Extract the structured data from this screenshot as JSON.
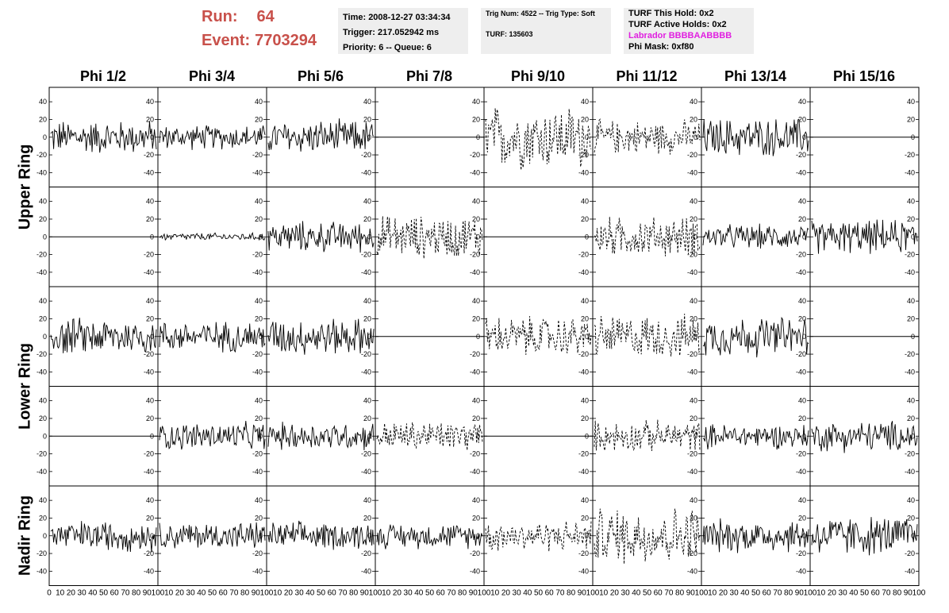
{
  "header": {
    "run_label": "Run:",
    "run_value": "64",
    "event_label": "Event:",
    "event_value": "7703294"
  },
  "info_box_1": {
    "time": "Time: 2008-12-27 03:34:34",
    "trigger": "Trigger: 217.052942 ms",
    "priority": "Priority: 6 -- Queue: 6"
  },
  "info_box_2": {
    "trig": "Trig Num: 4522 -- Trig Type: Soft",
    "turf": "TURF: 135603"
  },
  "info_box_3": {
    "hold": "TURF This Hold: 0x2",
    "active": "TURF Active Holds: 0x2",
    "labrador": "Labrador BBBBAABBBB",
    "phimask": "Phi Mask: 0xf80"
  },
  "colors": {
    "header": "#c8504a",
    "labrador": "#e020e0",
    "box": "#eeeeee"
  },
  "columns": [
    "Phi 1/2",
    "Phi 3/4",
    "Phi 5/6",
    "Phi 7/8",
    "Phi 9/10",
    "Phi 11/12",
    "Phi 13/14",
    "Phi 15/16"
  ],
  "rows": [
    "Upper Ring",
    "Upper Ring",
    "Lower Ring",
    "Lower Ring",
    "Nadir Ring"
  ],
  "row_labels": [
    {
      "text": "Upper Ring"
    },
    {
      "text": "Lower Ring"
    },
    {
      "text": "Nadir Ring"
    }
  ],
  "chart_data": {
    "type": "line",
    "title": "",
    "xlabel": "",
    "ylabel": "",
    "xlim": [
      0,
      100
    ],
    "ylim": [
      -50,
      50
    ],
    "y_ticks": [
      -40,
      -20,
      0,
      20,
      40
    ],
    "y_tick_labels": [
      "-40",
      "-20",
      "0",
      "20",
      "40"
    ],
    "x_tick_labels_first": [
      "0",
      "10",
      "20",
      "30",
      "40",
      "50",
      "60",
      "70",
      "80",
      "90",
      "100"
    ],
    "x_tick_labels_other": [
      "10",
      "20",
      "30",
      "40",
      "50",
      "60",
      "70",
      "80",
      "90",
      "100"
    ],
    "grid": false,
    "panels": [
      [
        {
          "amp": 22,
          "style": "solid"
        },
        {
          "amp": 16,
          "style": "solid"
        },
        {
          "amp": 22,
          "style": "solid"
        },
        {
          "amp": 0,
          "style": "flat"
        },
        {
          "amp": 42,
          "style": "dashed"
        },
        {
          "amp": 22,
          "style": "dashed"
        },
        {
          "amp": 25,
          "style": "solid"
        },
        {
          "amp": 0,
          "style": "flat"
        }
      ],
      [
        {
          "amp": 0,
          "style": "flat"
        },
        {
          "amp": 5,
          "style": "solid"
        },
        {
          "amp": 20,
          "style": "solid"
        },
        {
          "amp": 28,
          "style": "dashed"
        },
        {
          "amp": 0,
          "style": "flat"
        },
        {
          "amp": 26,
          "style": "dashed"
        },
        {
          "amp": 16,
          "style": "solid"
        },
        {
          "amp": 22,
          "style": "solid"
        }
      ],
      [
        {
          "amp": 24,
          "style": "solid"
        },
        {
          "amp": 20,
          "style": "solid"
        },
        {
          "amp": 24,
          "style": "solid"
        },
        {
          "amp": 0,
          "style": "flat"
        },
        {
          "amp": 26,
          "style": "dashed"
        },
        {
          "amp": 28,
          "style": "dashed"
        },
        {
          "amp": 26,
          "style": "solid"
        },
        {
          "amp": 0,
          "style": "flat"
        }
      ],
      [
        {
          "amp": 0,
          "style": "flat"
        },
        {
          "amp": 18,
          "style": "solid"
        },
        {
          "amp": 18,
          "style": "solid"
        },
        {
          "amp": 20,
          "style": "dashed"
        },
        {
          "amp": 0,
          "style": "flat"
        },
        {
          "amp": 20,
          "style": "dashed"
        },
        {
          "amp": 16,
          "style": "solid"
        },
        {
          "amp": 20,
          "style": "solid"
        }
      ],
      [
        {
          "amp": 20,
          "style": "solid"
        },
        {
          "amp": 18,
          "style": "solid"
        },
        {
          "amp": 18,
          "style": "solid"
        },
        {
          "amp": 16,
          "style": "solid"
        },
        {
          "amp": 20,
          "style": "dashed"
        },
        {
          "amp": 38,
          "style": "dashed"
        },
        {
          "amp": 22,
          "style": "solid"
        },
        {
          "amp": 26,
          "style": "solid"
        }
      ]
    ]
  }
}
